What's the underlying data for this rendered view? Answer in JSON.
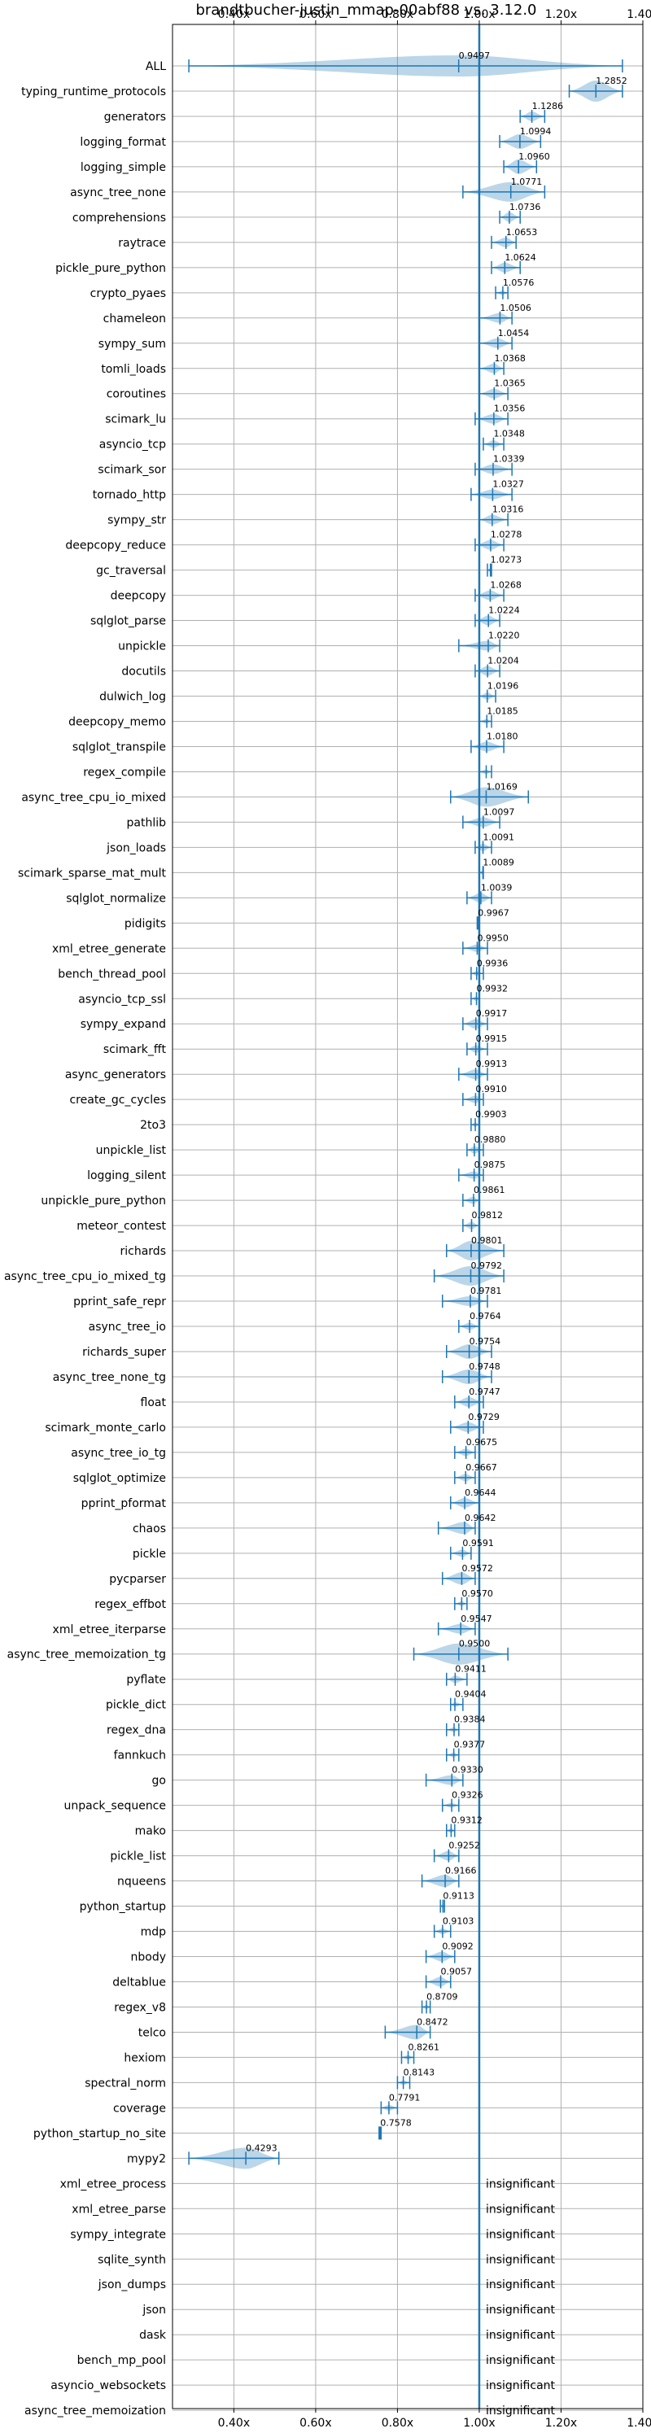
{
  "chart_data": {
    "type": "violin",
    "title": "brandtbucher-justin_mmap-00abf88 vs. 3.12.0",
    "xlim": [
      0.25,
      1.4
    ],
    "xticks": [
      0.4,
      0.6,
      0.8,
      1.0,
      1.2,
      1.4
    ],
    "xtick_labels": [
      "0.40x",
      "0.60x",
      "0.80x",
      "1.00x",
      "1.20x",
      "1.40x"
    ],
    "reference_line": 1.0,
    "grid": true,
    "insignificant_label": "insignificant",
    "benchmarks": [
      {
        "name": "ALL",
        "value": 0.9497,
        "label": "0.9497",
        "lo": 0.29,
        "hi": 1.35,
        "spread": 0.1
      },
      {
        "name": "typing_runtime_protocols",
        "value": 1.2852,
        "label": "1.2852",
        "lo": 1.22,
        "hi": 1.35,
        "spread": 0.05
      },
      {
        "name": "generators",
        "value": 1.1286,
        "label": "1.1286",
        "lo": 1.1,
        "hi": 1.16,
        "spread": 0.02
      },
      {
        "name": "logging_format",
        "value": 1.0994,
        "label": "1.0994",
        "lo": 1.05,
        "hi": 1.15,
        "spread": 0.03
      },
      {
        "name": "logging_simple",
        "value": 1.096,
        "label": "1.0960",
        "lo": 1.06,
        "hi": 1.14,
        "spread": 0.03
      },
      {
        "name": "async_tree_none",
        "value": 1.0771,
        "label": "1.0771",
        "lo": 0.96,
        "hi": 1.16,
        "spread": 0.04
      },
      {
        "name": "comprehensions",
        "value": 1.0736,
        "label": "1.0736",
        "lo": 1.05,
        "hi": 1.1,
        "spread": 0.02
      },
      {
        "name": "raytrace",
        "value": 1.0653,
        "label": "1.0653",
        "lo": 1.03,
        "hi": 1.09,
        "spread": 0.02
      },
      {
        "name": "pickle_pure_python",
        "value": 1.0624,
        "label": "1.0624",
        "lo": 1.03,
        "hi": 1.1,
        "spread": 0.02
      },
      {
        "name": "crypto_pyaes",
        "value": 1.0576,
        "label": "1.0576",
        "lo": 1.04,
        "hi": 1.07,
        "spread": 0.01
      },
      {
        "name": "chameleon",
        "value": 1.0506,
        "label": "1.0506",
        "lo": 1.0,
        "hi": 1.08,
        "spread": 0.02
      },
      {
        "name": "sympy_sum",
        "value": 1.0454,
        "label": "1.0454",
        "lo": 1.0,
        "hi": 1.08,
        "spread": 0.02
      },
      {
        "name": "tomli_loads",
        "value": 1.0368,
        "label": "1.0368",
        "lo": 1.0,
        "hi": 1.06,
        "spread": 0.02
      },
      {
        "name": "coroutines",
        "value": 1.0365,
        "label": "1.0365",
        "lo": 1.0,
        "hi": 1.07,
        "spread": 0.02
      },
      {
        "name": "scimark_lu",
        "value": 1.0356,
        "label": "1.0356",
        "lo": 0.99,
        "hi": 1.07,
        "spread": 0.02
      },
      {
        "name": "asyncio_tcp",
        "value": 1.0348,
        "label": "1.0348",
        "lo": 1.01,
        "hi": 1.06,
        "spread": 0.015
      },
      {
        "name": "scimark_sor",
        "value": 1.0339,
        "label": "1.0339",
        "lo": 0.99,
        "hi": 1.08,
        "spread": 0.02
      },
      {
        "name": "tornado_http",
        "value": 1.0327,
        "label": "1.0327",
        "lo": 0.98,
        "hi": 1.08,
        "spread": 0.02
      },
      {
        "name": "sympy_str",
        "value": 1.0316,
        "label": "1.0316",
        "lo": 1.0,
        "hi": 1.07,
        "spread": 0.02
      },
      {
        "name": "deepcopy_reduce",
        "value": 1.0278,
        "label": "1.0278",
        "lo": 0.99,
        "hi": 1.06,
        "spread": 0.02
      },
      {
        "name": "gc_traversal",
        "value": 1.0273,
        "label": "1.0273",
        "lo": 1.02,
        "hi": 1.03,
        "spread": 0.005
      },
      {
        "name": "deepcopy",
        "value": 1.0268,
        "label": "1.0268",
        "lo": 0.99,
        "hi": 1.06,
        "spread": 0.02
      },
      {
        "name": "sqlglot_parse",
        "value": 1.0224,
        "label": "1.0224",
        "lo": 0.99,
        "hi": 1.05,
        "spread": 0.02
      },
      {
        "name": "unpickle",
        "value": 1.022,
        "label": "1.0220",
        "lo": 0.95,
        "hi": 1.05,
        "spread": 0.02
      },
      {
        "name": "docutils",
        "value": 1.0204,
        "label": "1.0204",
        "lo": 0.99,
        "hi": 1.05,
        "spread": 0.02
      },
      {
        "name": "dulwich_log",
        "value": 1.0196,
        "label": "1.0196",
        "lo": 1.0,
        "hi": 1.04,
        "spread": 0.015
      },
      {
        "name": "deepcopy_memo",
        "value": 1.0185,
        "label": "1.0185",
        "lo": 1.0,
        "hi": 1.03,
        "spread": 0.01
      },
      {
        "name": "sqlglot_transpile",
        "value": 1.018,
        "label": "1.0180",
        "lo": 0.98,
        "hi": 1.06,
        "spread": 0.02
      },
      {
        "name": "regex_compile",
        "value": 1.017,
        "label": "",
        "lo": 1.0,
        "hi": 1.03,
        "spread": 0.01
      },
      {
        "name": "async_tree_cpu_io_mixed",
        "value": 1.0169,
        "label": "1.0169",
        "lo": 0.93,
        "hi": 1.12,
        "spread": 0.04
      },
      {
        "name": "pathlib",
        "value": 1.0097,
        "label": "1.0097",
        "lo": 0.96,
        "hi": 1.05,
        "spread": 0.02
      },
      {
        "name": "json_loads",
        "value": 1.0091,
        "label": "1.0091",
        "lo": 0.99,
        "hi": 1.03,
        "spread": 0.015
      },
      {
        "name": "scimark_sparse_mat_mult",
        "value": 1.0089,
        "label": "1.0089",
        "lo": 1.0,
        "hi": 1.01,
        "spread": 0.005
      },
      {
        "name": "sqlglot_normalize",
        "value": 1.0039,
        "label": "1.0039",
        "lo": 0.97,
        "hi": 1.03,
        "spread": 0.02
      },
      {
        "name": "pidigits",
        "value": 0.9967,
        "label": "0.9967",
        "lo": 0.995,
        "hi": 0.998,
        "spread": 0.003
      },
      {
        "name": "xml_etree_generate",
        "value": 0.995,
        "label": "0.9950",
        "lo": 0.96,
        "hi": 1.02,
        "spread": 0.015
      },
      {
        "name": "bench_thread_pool",
        "value": 0.9936,
        "label": "0.9936",
        "lo": 0.98,
        "hi": 1.01,
        "spread": 0.01
      },
      {
        "name": "asyncio_tcp_ssl",
        "value": 0.9932,
        "label": "0.9932",
        "lo": 0.98,
        "hi": 1.0,
        "spread": 0.01
      },
      {
        "name": "sympy_expand",
        "value": 0.9917,
        "label": "0.9917",
        "lo": 0.96,
        "hi": 1.02,
        "spread": 0.02
      },
      {
        "name": "scimark_fft",
        "value": 0.9915,
        "label": "0.9915",
        "lo": 0.97,
        "hi": 1.02,
        "spread": 0.015
      },
      {
        "name": "async_generators",
        "value": 0.9913,
        "label": "0.9913",
        "lo": 0.95,
        "hi": 1.02,
        "spread": 0.02
      },
      {
        "name": "create_gc_cycles",
        "value": 0.991,
        "label": "0.9910",
        "lo": 0.96,
        "hi": 1.01,
        "spread": 0.015
      },
      {
        "name": "2to3",
        "value": 0.9903,
        "label": "0.9903",
        "lo": 0.98,
        "hi": 1.0,
        "spread": 0.01
      },
      {
        "name": "unpickle_list",
        "value": 0.988,
        "label": "0.9880",
        "lo": 0.97,
        "hi": 1.01,
        "spread": 0.015
      },
      {
        "name": "logging_silent",
        "value": 0.9875,
        "label": "0.9875",
        "lo": 0.95,
        "hi": 1.01,
        "spread": 0.015
      },
      {
        "name": "unpickle_pure_python",
        "value": 0.9861,
        "label": "0.9861",
        "lo": 0.96,
        "hi": 1.0,
        "spread": 0.015
      },
      {
        "name": "meteor_contest",
        "value": 0.9812,
        "label": "0.9812",
        "lo": 0.96,
        "hi": 1.0,
        "spread": 0.015
      },
      {
        "name": "richards",
        "value": 0.9801,
        "label": "0.9801",
        "lo": 0.92,
        "hi": 1.06,
        "spread": 0.04
      },
      {
        "name": "async_tree_cpu_io_mixed_tg",
        "value": 0.9792,
        "label": "0.9792",
        "lo": 0.89,
        "hi": 1.06,
        "spread": 0.04
      },
      {
        "name": "pprint_safe_repr",
        "value": 0.9781,
        "label": "0.9781",
        "lo": 0.91,
        "hi": 1.02,
        "spread": 0.02
      },
      {
        "name": "async_tree_io",
        "value": 0.9764,
        "label": "0.9764",
        "lo": 0.95,
        "hi": 1.0,
        "spread": 0.015
      },
      {
        "name": "richards_super",
        "value": 0.9754,
        "label": "0.9754",
        "lo": 0.92,
        "hi": 1.03,
        "spread": 0.03
      },
      {
        "name": "async_tree_none_tg",
        "value": 0.9748,
        "label": "0.9748",
        "lo": 0.91,
        "hi": 1.03,
        "spread": 0.03
      },
      {
        "name": "float",
        "value": 0.9747,
        "label": "0.9747",
        "lo": 0.94,
        "hi": 1.01,
        "spread": 0.02
      },
      {
        "name": "scimark_monte_carlo",
        "value": 0.9729,
        "label": "0.9729",
        "lo": 0.93,
        "hi": 1.01,
        "spread": 0.02
      },
      {
        "name": "async_tree_io_tg",
        "value": 0.9675,
        "label": "0.9675",
        "lo": 0.94,
        "hi": 0.99,
        "spread": 0.015
      },
      {
        "name": "sqlglot_optimize",
        "value": 0.9667,
        "label": "0.9667",
        "lo": 0.94,
        "hi": 0.99,
        "spread": 0.015
      },
      {
        "name": "pprint_pformat",
        "value": 0.9644,
        "label": "0.9644",
        "lo": 0.93,
        "hi": 1.0,
        "spread": 0.02
      },
      {
        "name": "chaos",
        "value": 0.9642,
        "label": "0.9642",
        "lo": 0.9,
        "hi": 0.99,
        "spread": 0.025
      },
      {
        "name": "pickle",
        "value": 0.9591,
        "label": "0.9591",
        "lo": 0.93,
        "hi": 0.98,
        "spread": 0.015
      },
      {
        "name": "pycparser",
        "value": 0.9572,
        "label": "0.9572",
        "lo": 0.91,
        "hi": 0.99,
        "spread": 0.025
      },
      {
        "name": "regex_effbot",
        "value": 0.957,
        "label": "0.9570",
        "lo": 0.94,
        "hi": 0.97,
        "spread": 0.01
      },
      {
        "name": "xml_etree_iterparse",
        "value": 0.9547,
        "label": "0.9547",
        "lo": 0.9,
        "hi": 0.99,
        "spread": 0.02
      },
      {
        "name": "async_tree_memoization_tg",
        "value": 0.95,
        "label": "0.9500",
        "lo": 0.84,
        "hi": 1.07,
        "spread": 0.045
      },
      {
        "name": "pyflate",
        "value": 0.9411,
        "label": "0.9411",
        "lo": 0.92,
        "hi": 0.97,
        "spread": 0.015
      },
      {
        "name": "pickle_dict",
        "value": 0.9404,
        "label": "0.9404",
        "lo": 0.93,
        "hi": 0.96,
        "spread": 0.01
      },
      {
        "name": "regex_dna",
        "value": 0.9384,
        "label": "0.9384",
        "lo": 0.92,
        "hi": 0.95,
        "spread": 0.01
      },
      {
        "name": "fannkuch",
        "value": 0.9377,
        "label": "0.9377",
        "lo": 0.92,
        "hi": 0.95,
        "spread": 0.01
      },
      {
        "name": "go",
        "value": 0.933,
        "label": "0.9330",
        "lo": 0.87,
        "hi": 0.96,
        "spread": 0.02
      },
      {
        "name": "unpack_sequence",
        "value": 0.9326,
        "label": "0.9326",
        "lo": 0.91,
        "hi": 0.95,
        "spread": 0.01
      },
      {
        "name": "mako",
        "value": 0.9312,
        "label": "0.9312",
        "lo": 0.92,
        "hi": 0.94,
        "spread": 0.008
      },
      {
        "name": "pickle_list",
        "value": 0.9252,
        "label": "0.9252",
        "lo": 0.89,
        "hi": 0.95,
        "spread": 0.02
      },
      {
        "name": "nqueens",
        "value": 0.9166,
        "label": "0.9166",
        "lo": 0.86,
        "hi": 0.95,
        "spread": 0.025
      },
      {
        "name": "python_startup",
        "value": 0.9113,
        "label": "0.9113",
        "lo": 0.905,
        "hi": 0.915,
        "spread": 0.004
      },
      {
        "name": "mdp",
        "value": 0.9103,
        "label": "0.9103",
        "lo": 0.89,
        "hi": 0.93,
        "spread": 0.012
      },
      {
        "name": "nbody",
        "value": 0.9092,
        "label": "0.9092",
        "lo": 0.87,
        "hi": 0.94,
        "spread": 0.02
      },
      {
        "name": "deltablue",
        "value": 0.9057,
        "label": "0.9057",
        "lo": 0.87,
        "hi": 0.93,
        "spread": 0.02
      },
      {
        "name": "regex_v8",
        "value": 0.8709,
        "label": "0.8709",
        "lo": 0.86,
        "hi": 0.88,
        "spread": 0.008
      },
      {
        "name": "telco",
        "value": 0.8472,
        "label": "0.8472",
        "lo": 0.77,
        "hi": 0.88,
        "spread": 0.03
      },
      {
        "name": "hexiom",
        "value": 0.8261,
        "label": "0.8261",
        "lo": 0.81,
        "hi": 0.84,
        "spread": 0.01
      },
      {
        "name": "spectral_norm",
        "value": 0.8143,
        "label": "0.8143",
        "lo": 0.8,
        "hi": 0.83,
        "spread": 0.01
      },
      {
        "name": "coverage",
        "value": 0.7791,
        "label": "0.7791",
        "lo": 0.76,
        "hi": 0.8,
        "spread": 0.012
      },
      {
        "name": "python_startup_no_site",
        "value": 0.7578,
        "label": "0.7578",
        "lo": 0.755,
        "hi": 0.76,
        "spread": 0.004
      },
      {
        "name": "mypy2",
        "value": 0.4293,
        "label": "0.4293",
        "lo": 0.29,
        "hi": 0.51,
        "spread": 0.08
      },
      {
        "name": "xml_etree_process",
        "insignificant": true
      },
      {
        "name": "xml_etree_parse",
        "insignificant": true
      },
      {
        "name": "sympy_integrate",
        "insignificant": true
      },
      {
        "name": "sqlite_synth",
        "insignificant": true
      },
      {
        "name": "json_dumps",
        "insignificant": true
      },
      {
        "name": "json",
        "insignificant": true
      },
      {
        "name": "dask",
        "insignificant": true
      },
      {
        "name": "bench_mp_pool",
        "insignificant": true
      },
      {
        "name": "asyncio_websockets",
        "insignificant": true
      },
      {
        "name": "async_tree_memoization",
        "insignificant": true
      }
    ]
  }
}
